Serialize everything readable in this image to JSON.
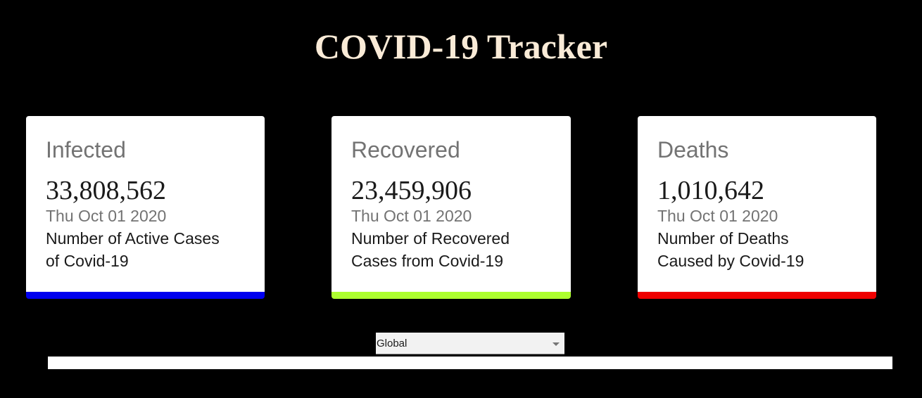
{
  "header": {
    "title": "COVID-19 Tracker"
  },
  "cards": [
    {
      "label": "Infected",
      "value": "33,808,562",
      "date": "Thu Oct 01 2020",
      "description": "Number of Active Cases of Covid-19",
      "accent_color": "#0000ee"
    },
    {
      "label": "Recovered",
      "value": "23,459,906",
      "date": "Thu Oct 01 2020",
      "description": "Number of Recovered Cases from Covid-19",
      "accent_color": "#adff2f"
    },
    {
      "label": "Deaths",
      "value": "1,010,642",
      "date": "Thu Oct 01 2020",
      "description": "Number of Deaths Caused by Covid-19",
      "accent_color": "#ee0000"
    }
  ],
  "country_picker": {
    "selected": "Global",
    "icon": "chevron-down-icon"
  },
  "colors": {
    "background": "#000000",
    "title": "#faebd7"
  }
}
